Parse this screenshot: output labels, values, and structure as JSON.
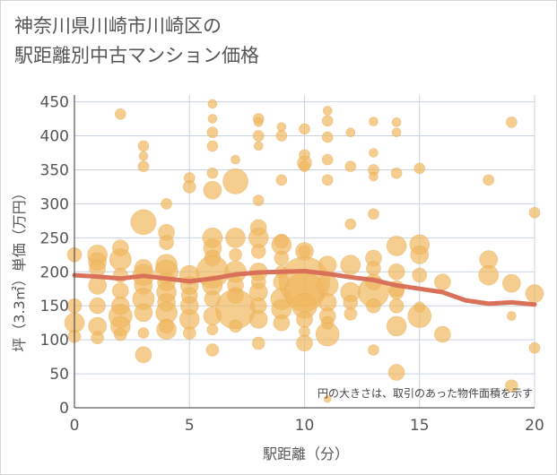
{
  "chart_data": {
    "type": "scatter",
    "title": "神奈川県川崎市川崎区の\n駅距離別中古マンション価格",
    "xlabel": "駅距離（分）",
    "ylabel": "坪（3.3㎡）単価（万円）",
    "xlim": [
      0,
      20
    ],
    "ylim": [
      0,
      460
    ],
    "xticks": [
      0,
      5,
      10,
      15,
      20
    ],
    "yticks": [
      0,
      50,
      100,
      150,
      200,
      250,
      300,
      350,
      400,
      450
    ],
    "grid": true,
    "annotation": "円の大きさは、取引のあった物件面積を示す",
    "colors": {
      "bubble": "#f0b860",
      "trend": "#d9705a",
      "grid": "#c9d3e0"
    },
    "series": [
      {
        "type": "bubble",
        "points": [
          {
            "x": 0,
            "y": 225,
            "s": 8
          },
          {
            "x": 0,
            "y": 150,
            "s": 8
          },
          {
            "x": 0,
            "y": 125,
            "s": 11
          },
          {
            "x": 0,
            "y": 105,
            "s": 7
          },
          {
            "x": 1,
            "y": 225,
            "s": 11
          },
          {
            "x": 1,
            "y": 215,
            "s": 10
          },
          {
            "x": 1,
            "y": 205,
            "s": 9
          },
          {
            "x": 1,
            "y": 180,
            "s": 10
          },
          {
            "x": 1,
            "y": 150,
            "s": 9
          },
          {
            "x": 1,
            "y": 120,
            "s": 10
          },
          {
            "x": 1,
            "y": 103,
            "s": 7
          },
          {
            "x": 2,
            "y": 432,
            "s": 6
          },
          {
            "x": 2,
            "y": 235,
            "s": 9
          },
          {
            "x": 2,
            "y": 218,
            "s": 12
          },
          {
            "x": 2,
            "y": 195,
            "s": 8
          },
          {
            "x": 2,
            "y": 172,
            "s": 9
          },
          {
            "x": 2,
            "y": 150,
            "s": 10
          },
          {
            "x": 2,
            "y": 135,
            "s": 13
          },
          {
            "x": 2,
            "y": 120,
            "s": 11
          },
          {
            "x": 2,
            "y": 108,
            "s": 7
          },
          {
            "x": 3,
            "y": 385,
            "s": 6
          },
          {
            "x": 3,
            "y": 370,
            "s": 5
          },
          {
            "x": 3,
            "y": 355,
            "s": 6
          },
          {
            "x": 3,
            "y": 273,
            "s": 14
          },
          {
            "x": 3,
            "y": 205,
            "s": 10
          },
          {
            "x": 3,
            "y": 195,
            "s": 12
          },
          {
            "x": 3,
            "y": 180,
            "s": 10
          },
          {
            "x": 3,
            "y": 160,
            "s": 12
          },
          {
            "x": 3,
            "y": 140,
            "s": 10
          },
          {
            "x": 3,
            "y": 110,
            "s": 6
          },
          {
            "x": 3,
            "y": 78,
            "s": 9
          },
          {
            "x": 4,
            "y": 300,
            "s": 6
          },
          {
            "x": 4,
            "y": 258,
            "s": 9
          },
          {
            "x": 4,
            "y": 243,
            "s": 8
          },
          {
            "x": 4,
            "y": 210,
            "s": 12
          },
          {
            "x": 4,
            "y": 200,
            "s": 13
          },
          {
            "x": 4,
            "y": 185,
            "s": 10
          },
          {
            "x": 4,
            "y": 170,
            "s": 11
          },
          {
            "x": 4,
            "y": 155,
            "s": 10
          },
          {
            "x": 4,
            "y": 140,
            "s": 12
          },
          {
            "x": 4,
            "y": 120,
            "s": 8
          },
          {
            "x": 4,
            "y": 115,
            "s": 11
          },
          {
            "x": 5,
            "y": 338,
            "s": 6
          },
          {
            "x": 5,
            "y": 325,
            "s": 7
          },
          {
            "x": 5,
            "y": 195,
            "s": 11
          },
          {
            "x": 5,
            "y": 180,
            "s": 10
          },
          {
            "x": 5,
            "y": 165,
            "s": 9
          },
          {
            "x": 5,
            "y": 150,
            "s": 10
          },
          {
            "x": 5,
            "y": 130,
            "s": 11
          },
          {
            "x": 5,
            "y": 110,
            "s": 7
          },
          {
            "x": 6,
            "y": 447,
            "s": 5
          },
          {
            "x": 6,
            "y": 425,
            "s": 5
          },
          {
            "x": 6,
            "y": 405,
            "s": 6
          },
          {
            "x": 6,
            "y": 385,
            "s": 6
          },
          {
            "x": 6,
            "y": 345,
            "s": 6
          },
          {
            "x": 6,
            "y": 320,
            "s": 10
          },
          {
            "x": 6,
            "y": 250,
            "s": 11
          },
          {
            "x": 6,
            "y": 235,
            "s": 10
          },
          {
            "x": 6,
            "y": 220,
            "s": 9
          },
          {
            "x": 6,
            "y": 200,
            "s": 18
          },
          {
            "x": 6,
            "y": 180,
            "s": 11
          },
          {
            "x": 6,
            "y": 160,
            "s": 9
          },
          {
            "x": 6,
            "y": 135,
            "s": 10
          },
          {
            "x": 6,
            "y": 115,
            "s": 6
          },
          {
            "x": 6,
            "y": 85,
            "s": 7
          },
          {
            "x": 7,
            "y": 365,
            "s": 5
          },
          {
            "x": 7,
            "y": 333,
            "s": 14
          },
          {
            "x": 7,
            "y": 250,
            "s": 11
          },
          {
            "x": 7,
            "y": 225,
            "s": 7
          },
          {
            "x": 7,
            "y": 200,
            "s": 12
          },
          {
            "x": 7,
            "y": 180,
            "s": 9
          },
          {
            "x": 7,
            "y": 165,
            "s": 9
          },
          {
            "x": 7,
            "y": 145,
            "s": 22
          },
          {
            "x": 7,
            "y": 120,
            "s": 7
          },
          {
            "x": 8,
            "y": 425,
            "s": 6
          },
          {
            "x": 8,
            "y": 420,
            "s": 5
          },
          {
            "x": 8,
            "y": 400,
            "s": 6
          },
          {
            "x": 8,
            "y": 385,
            "s": 5
          },
          {
            "x": 8,
            "y": 305,
            "s": 6
          },
          {
            "x": 8,
            "y": 265,
            "s": 9
          },
          {
            "x": 8,
            "y": 250,
            "s": 11
          },
          {
            "x": 8,
            "y": 230,
            "s": 8
          },
          {
            "x": 8,
            "y": 200,
            "s": 10
          },
          {
            "x": 8,
            "y": 185,
            "s": 8
          },
          {
            "x": 8,
            "y": 170,
            "s": 10
          },
          {
            "x": 8,
            "y": 150,
            "s": 9
          },
          {
            "x": 8,
            "y": 130,
            "s": 10
          },
          {
            "x": 8,
            "y": 95,
            "s": 7
          },
          {
            "x": 9,
            "y": 413,
            "s": 5
          },
          {
            "x": 9,
            "y": 400,
            "s": 6
          },
          {
            "x": 9,
            "y": 335,
            "s": 6
          },
          {
            "x": 9,
            "y": 245,
            "s": 8
          },
          {
            "x": 9,
            "y": 240,
            "s": 11
          },
          {
            "x": 9,
            "y": 220,
            "s": 8
          },
          {
            "x": 9,
            "y": 200,
            "s": 7
          },
          {
            "x": 9,
            "y": 185,
            "s": 9
          },
          {
            "x": 9,
            "y": 160,
            "s": 12
          },
          {
            "x": 9,
            "y": 145,
            "s": 11
          },
          {
            "x": 9,
            "y": 125,
            "s": 9
          },
          {
            "x": 10,
            "y": 410,
            "s": 6
          },
          {
            "x": 10,
            "y": 372,
            "s": 6
          },
          {
            "x": 10,
            "y": 360,
            "s": 8
          },
          {
            "x": 10,
            "y": 355,
            "s": 6
          },
          {
            "x": 10,
            "y": 230,
            "s": 7
          },
          {
            "x": 10,
            "y": 230,
            "s": 10
          },
          {
            "x": 10,
            "y": 185,
            "s": 28
          },
          {
            "x": 10,
            "y": 170,
            "s": 22
          },
          {
            "x": 10,
            "y": 150,
            "s": 14
          },
          {
            "x": 10,
            "y": 130,
            "s": 9
          },
          {
            "x": 10,
            "y": 112,
            "s": 6
          },
          {
            "x": 10,
            "y": 95,
            "s": 9
          },
          {
            "x": 11,
            "y": 437,
            "s": 5
          },
          {
            "x": 11,
            "y": 422,
            "s": 6
          },
          {
            "x": 11,
            "y": 398,
            "s": 6
          },
          {
            "x": 11,
            "y": 365,
            "s": 6
          },
          {
            "x": 11,
            "y": 335,
            "s": 6
          },
          {
            "x": 11,
            "y": 210,
            "s": 10
          },
          {
            "x": 11,
            "y": 180,
            "s": 12
          },
          {
            "x": 11,
            "y": 155,
            "s": 10
          },
          {
            "x": 11,
            "y": 135,
            "s": 9
          },
          {
            "x": 11,
            "y": 125,
            "s": 7
          },
          {
            "x": 11,
            "y": 108,
            "s": 13
          },
          {
            "x": 11,
            "y": 13,
            "s": 4
          },
          {
            "x": 12,
            "y": 405,
            "s": 5
          },
          {
            "x": 12,
            "y": 355,
            "s": 6
          },
          {
            "x": 12,
            "y": 270,
            "s": 6
          },
          {
            "x": 12,
            "y": 210,
            "s": 11
          },
          {
            "x": 12,
            "y": 170,
            "s": 11
          },
          {
            "x": 12,
            "y": 155,
            "s": 8
          },
          {
            "x": 12,
            "y": 138,
            "s": 7
          },
          {
            "x": 13,
            "y": 421,
            "s": 5
          },
          {
            "x": 13,
            "y": 375,
            "s": 5
          },
          {
            "x": 13,
            "y": 350,
            "s": 6
          },
          {
            "x": 13,
            "y": 340,
            "s": 5
          },
          {
            "x": 13,
            "y": 285,
            "s": 6
          },
          {
            "x": 13,
            "y": 220,
            "s": 9
          },
          {
            "x": 13,
            "y": 205,
            "s": 8
          },
          {
            "x": 13,
            "y": 185,
            "s": 9
          },
          {
            "x": 13,
            "y": 170,
            "s": 17
          },
          {
            "x": 13,
            "y": 150,
            "s": 8
          },
          {
            "x": 13,
            "y": 85,
            "s": 6
          },
          {
            "x": 14,
            "y": 420,
            "s": 5
          },
          {
            "x": 14,
            "y": 405,
            "s": 5
          },
          {
            "x": 14,
            "y": 345,
            "s": 6
          },
          {
            "x": 14,
            "y": 238,
            "s": 11
          },
          {
            "x": 14,
            "y": 200,
            "s": 9
          },
          {
            "x": 14,
            "y": 175,
            "s": 9
          },
          {
            "x": 14,
            "y": 170,
            "s": 8
          },
          {
            "x": 14,
            "y": 150,
            "s": 8
          },
          {
            "x": 14,
            "y": 120,
            "s": 11
          },
          {
            "x": 14,
            "y": 52,
            "s": 9
          },
          {
            "x": 15,
            "y": 352,
            "s": 6
          },
          {
            "x": 15,
            "y": 240,
            "s": 11
          },
          {
            "x": 15,
            "y": 225,
            "s": 10
          },
          {
            "x": 15,
            "y": 195,
            "s": 8
          },
          {
            "x": 15,
            "y": 148,
            "s": 6
          },
          {
            "x": 15,
            "y": 135,
            "s": 13
          },
          {
            "x": 16,
            "y": 185,
            "s": 9
          },
          {
            "x": 16,
            "y": 108,
            "s": 9
          },
          {
            "x": 18,
            "y": 335,
            "s": 6
          },
          {
            "x": 18,
            "y": 218,
            "s": 10
          },
          {
            "x": 18,
            "y": 195,
            "s": 11
          },
          {
            "x": 19,
            "y": 420,
            "s": 6
          },
          {
            "x": 19,
            "y": 183,
            "s": 10
          },
          {
            "x": 19,
            "y": 135,
            "s": 5
          },
          {
            "x": 19,
            "y": 32,
            "s": 7
          },
          {
            "x": 20,
            "y": 287,
            "s": 6
          },
          {
            "x": 20,
            "y": 168,
            "s": 10
          },
          {
            "x": 20,
            "y": 88,
            "s": 6
          }
        ]
      },
      {
        "type": "trend",
        "points": [
          {
            "x": 0,
            "y": 195
          },
          {
            "x": 1,
            "y": 193
          },
          {
            "x": 2,
            "y": 190
          },
          {
            "x": 3,
            "y": 194
          },
          {
            "x": 4,
            "y": 190
          },
          {
            "x": 5,
            "y": 186
          },
          {
            "x": 6,
            "y": 190
          },
          {
            "x": 7,
            "y": 196
          },
          {
            "x": 8,
            "y": 199
          },
          {
            "x": 9,
            "y": 200
          },
          {
            "x": 10,
            "y": 201
          },
          {
            "x": 11,
            "y": 197
          },
          {
            "x": 12,
            "y": 192
          },
          {
            "x": 13,
            "y": 188
          },
          {
            "x": 14,
            "y": 180
          },
          {
            "x": 15,
            "y": 175
          },
          {
            "x": 16,
            "y": 170
          },
          {
            "x": 17,
            "y": 158
          },
          {
            "x": 18,
            "y": 153
          },
          {
            "x": 19,
            "y": 155
          },
          {
            "x": 20,
            "y": 152
          }
        ]
      }
    ]
  }
}
